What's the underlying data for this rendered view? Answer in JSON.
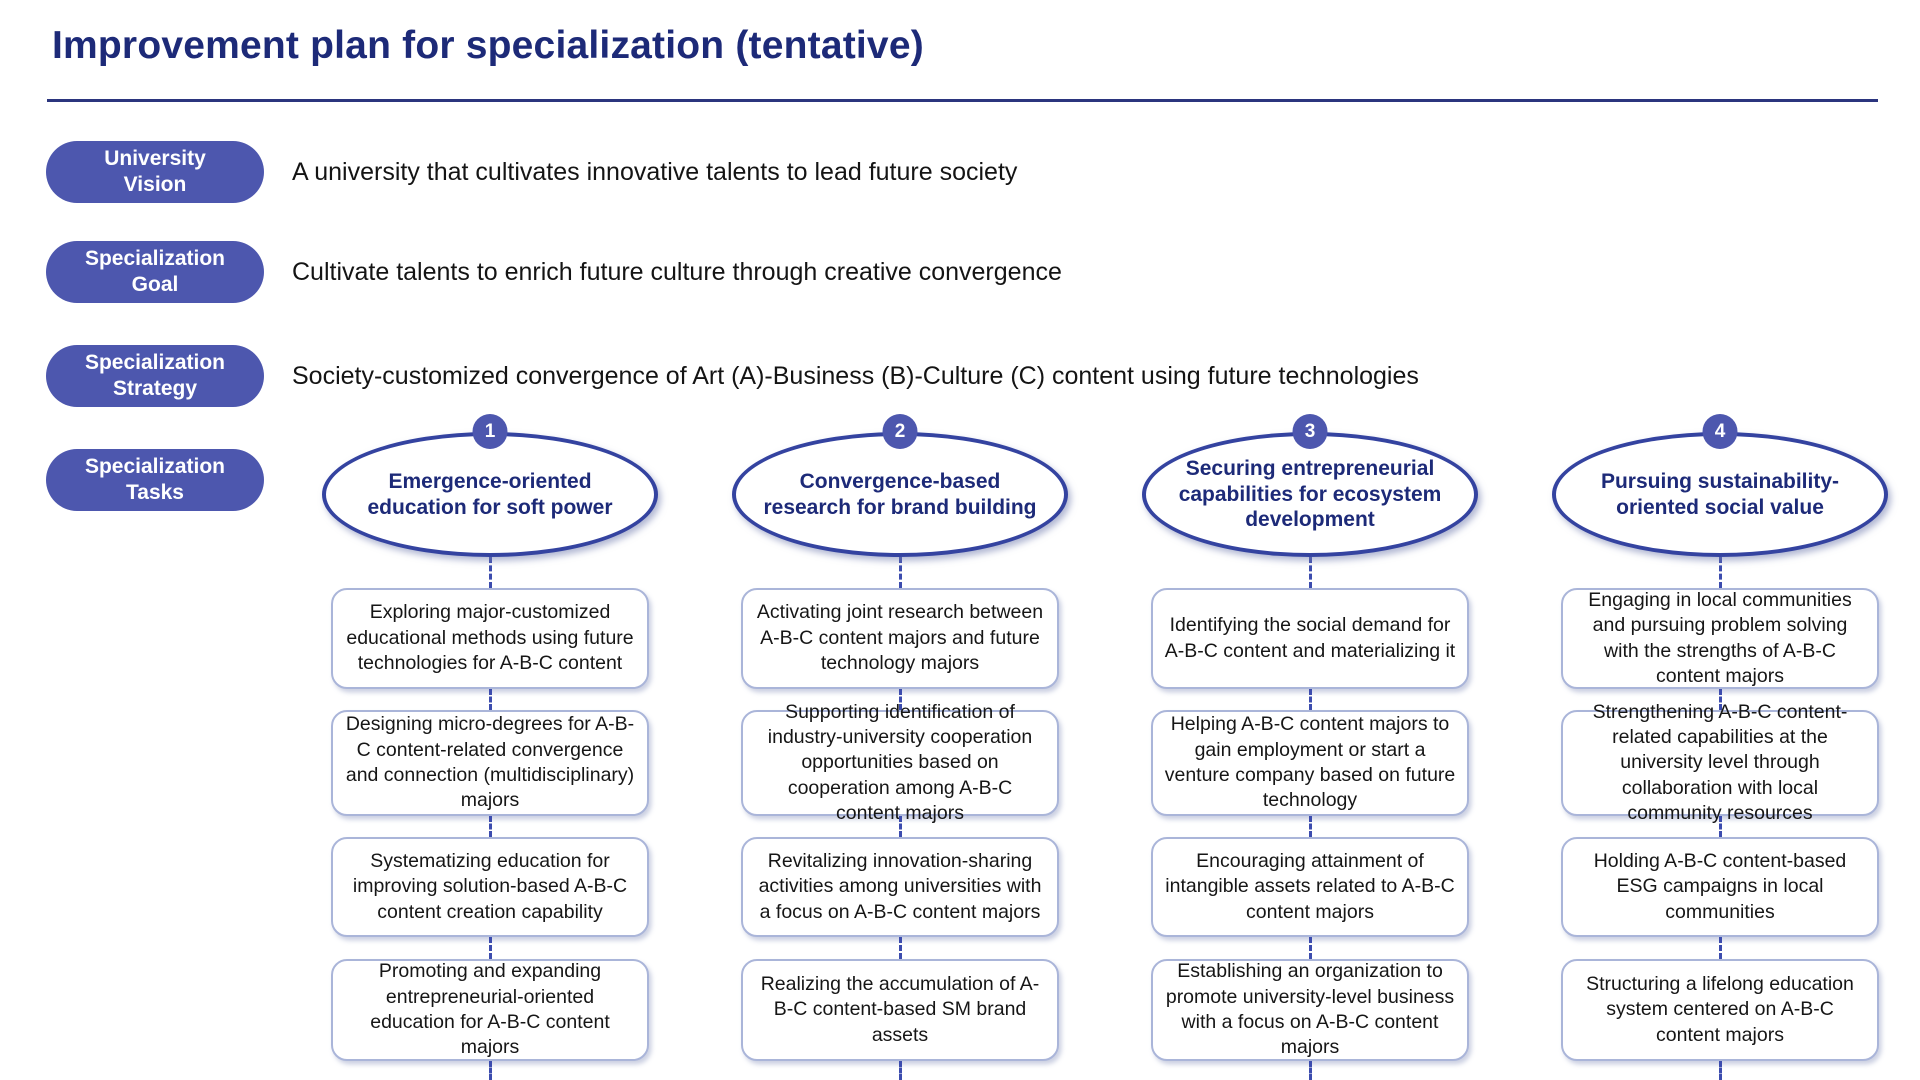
{
  "title": "Improvement plan for specialization (tentative)",
  "colors": {
    "navy_text": "#1d2a78",
    "pill_background": "#4d57ae",
    "ellipse_border": "#3443a0",
    "box_border": "#aab5d9",
    "connector": "#3c4cae"
  },
  "rows": [
    {
      "pill": {
        "line1": "University",
        "line2": "Vision"
      },
      "text": "A university that cultivates innovative talents to lead future society"
    },
    {
      "pill": {
        "line1": "Specialization",
        "line2": "Goal"
      },
      "text": "Cultivate talents to enrich future culture through creative convergence"
    },
    {
      "pill": {
        "line1": "Specialization",
        "line2": "Strategy"
      },
      "text": "Society-customized convergence of Art (A)-Business (B)-Culture (C) content using future technologies"
    },
    {
      "pill": {
        "line1": "Specialization",
        "line2": "Tasks"
      },
      "text": ""
    }
  ],
  "tasks": [
    {
      "number": "1",
      "title": "Emergence-oriented education for soft power",
      "items": [
        "Exploring major-customized educational methods using future technologies for A-B-C content",
        "Designing micro-degrees for A-B-C content-related convergence and connection (multidisciplinary) majors",
        "Systematizing education for improving solution-based A-B-C content creation capability",
        "Promoting and expanding entrepreneurial-oriented education for A-B-C content majors"
      ]
    },
    {
      "number": "2",
      "title": "Convergence-based research for brand building",
      "items": [
        "Activating joint research between A-B-C content majors and future technology majors",
        "Supporting identification of industry-university cooperation opportunities based on cooperation among A-B-C content majors",
        "Revitalizing innovation-sharing activities among universities with a focus on A-B-C content majors",
        "Realizing the accumulation of A-B-C content-based SM brand assets"
      ]
    },
    {
      "number": "3",
      "title": "Securing entrepreneurial capabilities for ecosystem development",
      "items": [
        "Identifying the social demand for A-B-C content and materializing it",
        "Helping A-B-C content majors to gain employment or start a venture company based on future technology",
        "Encouraging attainment of intangible assets related to A-B-C content majors",
        "Establishing an organization to promote university-level business with a focus on A-B-C content majors"
      ]
    },
    {
      "number": "4",
      "title": "Pursuing sustainability-oriented social value",
      "items": [
        "Engaging in local communities and pursuing problem solving with the strengths of A-B-C content majors",
        "Strengthening A-B-C content-related capabilities at the university level through collaboration with local community resources",
        "Holding A-B-C content-based ESG campaigns in local communities",
        "Structuring a lifelong education system centered on A-B-C content majors"
      ]
    }
  ]
}
